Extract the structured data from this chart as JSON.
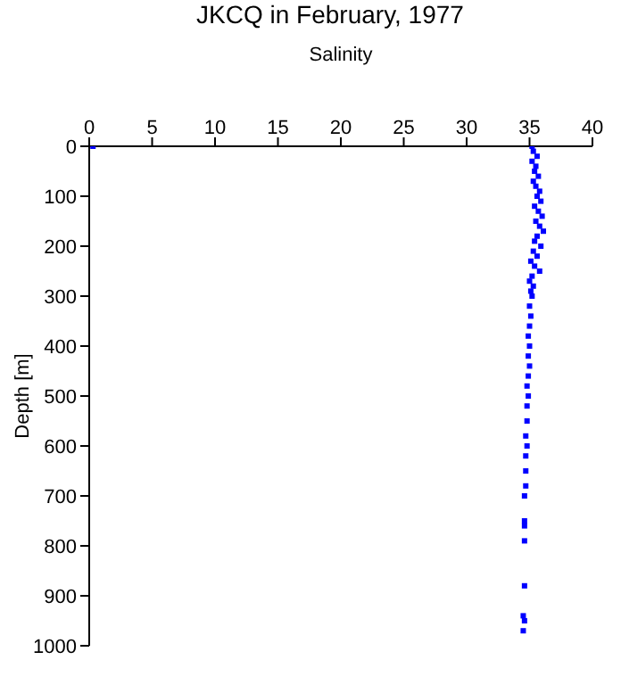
{
  "chart_data": {
    "type": "scatter",
    "title": "JKCQ in February, 1977",
    "xlabel": "Salinity",
    "ylabel": "Depth [m]",
    "xlim": [
      0,
      40
    ],
    "xticks": [
      0,
      5,
      10,
      15,
      20,
      25,
      30,
      35,
      40
    ],
    "ylim": [
      1000,
      0
    ],
    "yticks": [
      0,
      100,
      200,
      300,
      400,
      500,
      600,
      700,
      800,
      900,
      1000
    ],
    "grid": false,
    "legend": false,
    "marker": "square",
    "series": [
      {
        "color": "#0000ff",
        "x": [
          0.3,
          35.2,
          35.3,
          35.6,
          35.2,
          35.5,
          35.4,
          35.7,
          35.3,
          35.5,
          35.8,
          35.6,
          35.9,
          35.4,
          35.7,
          36.0,
          35.5,
          35.8,
          36.1,
          35.6,
          35.4,
          35.9,
          35.3,
          35.6,
          35.1,
          35.4,
          35.8,
          35.2,
          35.0,
          35.3,
          35.1,
          35.2,
          35.0,
          35.1,
          35.0,
          34.9,
          35.0,
          34.9,
          35.0,
          34.9,
          34.8,
          34.9,
          34.8,
          34.8,
          34.7,
          34.8,
          34.7,
          34.7,
          34.7,
          34.6,
          34.6,
          34.6,
          34.6,
          34.6,
          34.5,
          34.6,
          34.5
        ],
        "values": [
          0,
          0,
          10,
          20,
          30,
          40,
          50,
          60,
          70,
          80,
          90,
          100,
          110,
          120,
          130,
          140,
          150,
          160,
          170,
          180,
          190,
          200,
          210,
          220,
          230,
          240,
          250,
          260,
          270,
          280,
          290,
          300,
          320,
          340,
          360,
          380,
          400,
          420,
          440,
          460,
          480,
          500,
          520,
          550,
          580,
          600,
          620,
          650,
          680,
          700,
          750,
          760,
          790,
          880,
          940,
          950,
          970
        ]
      }
    ]
  }
}
